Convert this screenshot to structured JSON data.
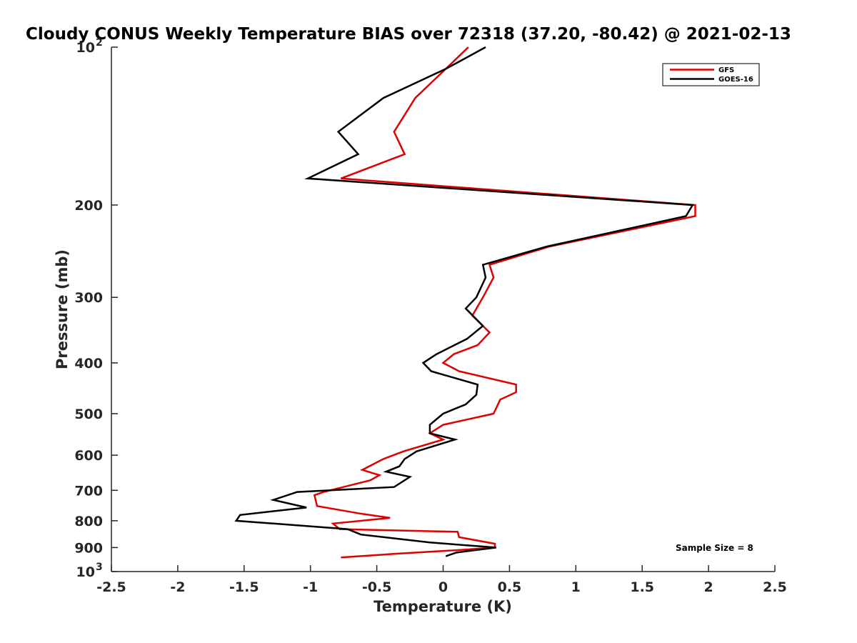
{
  "chart_data": {
    "type": "line",
    "title": "Cloudy CONUS Weekly Temperature BIAS over 72318 (37.20, -80.42) @ 2021-02-13",
    "xlabel": "Temperature (K)",
    "ylabel": "Pressure (mb)",
    "xlim": [
      -2.5,
      2.5
    ],
    "ylim": [
      100,
      1000
    ],
    "yscale": "log",
    "yreverse": true,
    "x_ticks": [
      "-2.5",
      "-2",
      "-1.5",
      "-1",
      "-0.5",
      "0",
      "0.5",
      "1",
      "1.5",
      "2",
      "2.5"
    ],
    "y_ticks": [
      {
        "value": 100,
        "label": "10",
        "sup": "2"
      },
      {
        "value": 200,
        "label": "200",
        "sup": ""
      },
      {
        "value": 300,
        "label": "300",
        "sup": ""
      },
      {
        "value": 400,
        "label": "400",
        "sup": ""
      },
      {
        "value": 500,
        "label": "500",
        "sup": ""
      },
      {
        "value": 600,
        "label": "600",
        "sup": ""
      },
      {
        "value": 700,
        "label": "700",
        "sup": ""
      },
      {
        "value": 800,
        "label": "800",
        "sup": ""
      },
      {
        "value": 900,
        "label": "900",
        "sup": ""
      },
      {
        "value": 1000,
        "label": "10",
        "sup": "3"
      }
    ],
    "legend_position": "top-right",
    "annotation": "Sample Size = 8",
    "series": [
      {
        "name": "GFS",
        "color": "#e00000",
        "points": [
          [
            0.19,
            100
          ],
          [
            0.02,
            110
          ],
          [
            -0.21,
            125
          ],
          [
            -0.37,
            145
          ],
          [
            -0.29,
            160
          ],
          [
            -0.77,
            178
          ],
          [
            1.9,
            200
          ],
          [
            1.9,
            210
          ],
          [
            0.8,
            240
          ],
          [
            0.35,
            260
          ],
          [
            0.38,
            275
          ],
          [
            0.3,
            300
          ],
          [
            0.22,
            325
          ],
          [
            0.35,
            350
          ],
          [
            0.26,
            370
          ],
          [
            0.08,
            385
          ],
          [
            0.0,
            400
          ],
          [
            0.12,
            415
          ],
          [
            0.55,
            440
          ],
          [
            0.55,
            455
          ],
          [
            0.43,
            470
          ],
          [
            0.38,
            500
          ],
          [
            0.0,
            525
          ],
          [
            -0.1,
            545
          ],
          [
            0.0,
            560
          ],
          [
            -0.3,
            590
          ],
          [
            -0.45,
            610
          ],
          [
            -0.61,
            640
          ],
          [
            -0.48,
            655
          ],
          [
            -0.55,
            670
          ],
          [
            -0.9,
            705
          ],
          [
            -0.97,
            715
          ],
          [
            -0.95,
            750
          ],
          [
            -0.63,
            775
          ],
          [
            -0.4,
            790
          ],
          [
            -0.83,
            810
          ],
          [
            -0.78,
            830
          ],
          [
            0.11,
            840
          ],
          [
            0.12,
            860
          ],
          [
            0.39,
            885
          ],
          [
            0.39,
            900
          ],
          [
            0.12,
            910
          ],
          [
            -0.36,
            925
          ],
          [
            -0.77,
            940
          ]
        ]
      },
      {
        "name": "GOES-16",
        "color": "#000000",
        "points": [
          [
            0.32,
            100
          ],
          [
            0.02,
            110
          ],
          [
            -0.45,
            125
          ],
          [
            -0.79,
            145
          ],
          [
            -0.64,
            160
          ],
          [
            -1.02,
            178
          ],
          [
            1.88,
            200
          ],
          [
            1.83,
            210
          ],
          [
            0.78,
            240
          ],
          [
            0.3,
            260
          ],
          [
            0.32,
            275
          ],
          [
            0.25,
            300
          ],
          [
            0.17,
            315
          ],
          [
            0.3,
            340
          ],
          [
            0.18,
            360
          ],
          [
            -0.05,
            385
          ],
          [
            -0.15,
            400
          ],
          [
            -0.09,
            415
          ],
          [
            0.26,
            440
          ],
          [
            0.25,
            460
          ],
          [
            0.17,
            480
          ],
          [
            0.0,
            500
          ],
          [
            -0.1,
            525
          ],
          [
            -0.1,
            545
          ],
          [
            0.09,
            560
          ],
          [
            -0.2,
            590
          ],
          [
            -0.29,
            610
          ],
          [
            -0.33,
            630
          ],
          [
            -0.43,
            645
          ],
          [
            -0.25,
            660
          ],
          [
            -0.37,
            690
          ],
          [
            -1.1,
            705
          ],
          [
            -1.28,
            730
          ],
          [
            -1.03,
            755
          ],
          [
            -1.53,
            780
          ],
          [
            -1.56,
            800
          ],
          [
            -0.72,
            830
          ],
          [
            -0.62,
            850
          ],
          [
            -0.1,
            880
          ],
          [
            0.4,
            900
          ],
          [
            0.1,
            920
          ],
          [
            0.02,
            935
          ]
        ]
      }
    ]
  }
}
